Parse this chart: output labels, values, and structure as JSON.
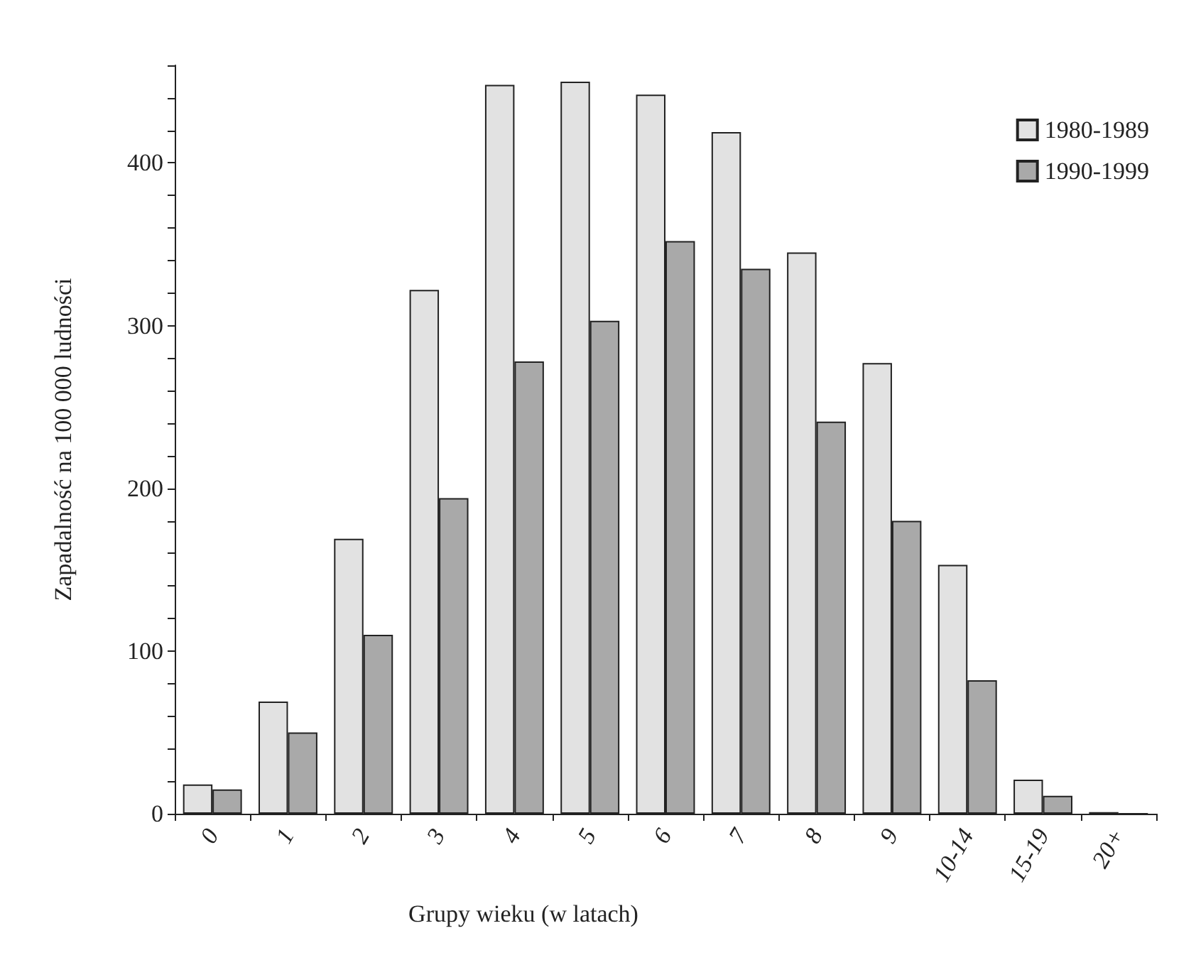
{
  "chart_data": {
    "type": "bar",
    "xlabel": "Grupy wieku (w latach)",
    "ylabel": "Zapadalność na 100 000 ludności",
    "categories": [
      "0",
      "1",
      "2",
      "3",
      "4",
      "5",
      "6",
      "7",
      "8",
      "9",
      "10-14",
      "15-19",
      "20+"
    ],
    "series": [
      {
        "name": "1980-1989",
        "color": "#e2e2e2",
        "values": [
          18,
          69,
          169,
          322,
          448,
          450,
          442,
          419,
          345,
          277,
          153,
          21,
          1
        ]
      },
      {
        "name": "1990-1999",
        "color": "#a9a9a9",
        "values": [
          15,
          50,
          110,
          194,
          278,
          303,
          352,
          335,
          241,
          180,
          82,
          11,
          0
        ]
      }
    ],
    "ylim": [
      0,
      460
    ],
    "yticks": [
      0,
      {
        "value": 20,
        "label": null
      },
      {
        "value": 40,
        "label": null
      },
      {
        "value": 60,
        "label": null
      },
      {
        "value": 80,
        "label": null
      },
      100,
      {
        "value": 120,
        "label": null
      },
      {
        "value": 140,
        "label": null
      },
      {
        "value": 160,
        "label": null
      },
      {
        "value": 180,
        "label": null
      },
      200,
      {
        "value": 220,
        "label": null
      },
      {
        "value": 240,
        "label": null
      },
      {
        "value": 260,
        "label": null
      },
      {
        "value": 280,
        "label": null
      },
      300,
      {
        "value": 320,
        "label": null
      },
      {
        "value": 340,
        "label": null
      },
      {
        "value": 360,
        "label": null
      },
      {
        "value": 380,
        "label": null
      },
      400,
      {
        "value": 420,
        "label": null
      },
      {
        "value": 440,
        "label": null
      },
      {
        "value": 460,
        "label": null
      }
    ],
    "grid": false,
    "legend": "top right"
  }
}
